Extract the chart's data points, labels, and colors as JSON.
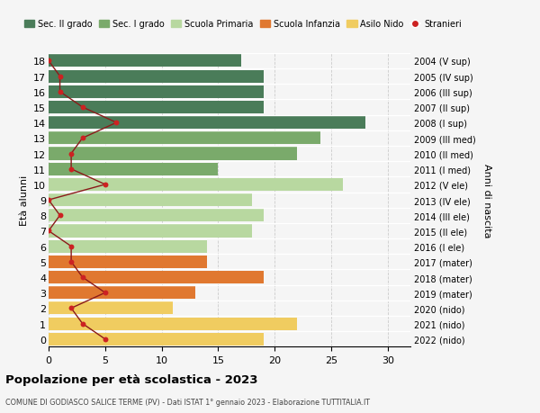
{
  "ages": [
    18,
    17,
    16,
    15,
    14,
    13,
    12,
    11,
    10,
    9,
    8,
    7,
    6,
    5,
    4,
    3,
    2,
    1,
    0
  ],
  "right_labels": [
    "2004 (V sup)",
    "2005 (IV sup)",
    "2006 (III sup)",
    "2007 (II sup)",
    "2008 (I sup)",
    "2009 (III med)",
    "2010 (II med)",
    "2011 (I med)",
    "2012 (V ele)",
    "2013 (IV ele)",
    "2014 (III ele)",
    "2015 (II ele)",
    "2016 (I ele)",
    "2017 (mater)",
    "2018 (mater)",
    "2019 (mater)",
    "2020 (nido)",
    "2021 (nido)",
    "2022 (nido)"
  ],
  "bar_values": [
    17,
    19,
    19,
    19,
    28,
    24,
    22,
    15,
    26,
    18,
    19,
    18,
    14,
    14,
    19,
    13,
    11,
    22,
    19
  ],
  "bar_colors": [
    "#4a7c59",
    "#4a7c59",
    "#4a7c59",
    "#4a7c59",
    "#4a7c59",
    "#7aaa6b",
    "#7aaa6b",
    "#7aaa6b",
    "#b8d8a0",
    "#b8d8a0",
    "#b8d8a0",
    "#b8d8a0",
    "#b8d8a0",
    "#e07830",
    "#e07830",
    "#e07830",
    "#f0cc60",
    "#f0cc60",
    "#f0cc60"
  ],
  "stranieri_values": [
    0,
    1,
    1,
    3,
    6,
    3,
    2,
    2,
    5,
    0,
    1,
    0,
    2,
    2,
    3,
    5,
    2,
    3,
    5
  ],
  "legend_labels": [
    "Sec. II grado",
    "Sec. I grado",
    "Scuola Primaria",
    "Scuola Infanzia",
    "Asilo Nido",
    "Stranieri"
  ],
  "legend_colors": [
    "#4a7c59",
    "#7aaa6b",
    "#b8d8a0",
    "#e07830",
    "#f0cc60",
    "#cc2222"
  ],
  "title": "Popolazione per età scolastica - 2023",
  "subtitle": "COMUNE DI GODIASCO SALICE TERME (PV) - Dati ISTAT 1° gennaio 2023 - Elaborazione TUTTITALIA.IT",
  "ylabel_left": "Età alunni",
  "ylabel_right": "Anni di nascita",
  "xlim": [
    0,
    32
  ],
  "background_color": "#f5f5f5",
  "grid_color": "#cccccc"
}
